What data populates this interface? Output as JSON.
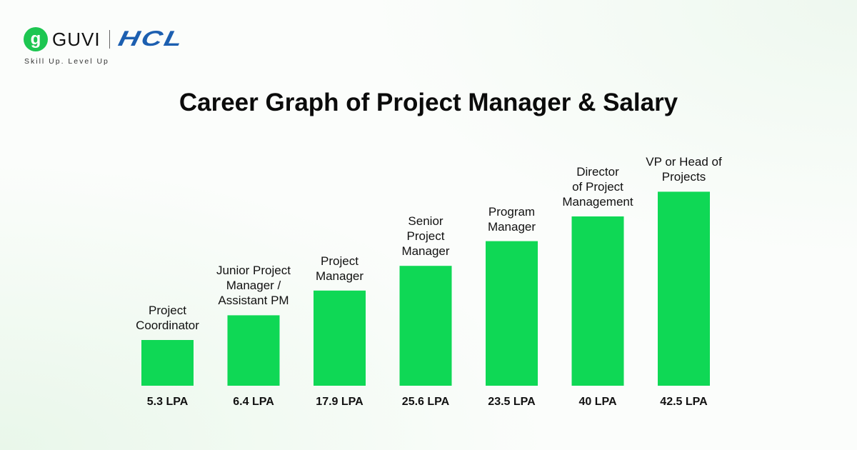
{
  "brand": {
    "guvi": "GUVI",
    "hcl": "HCL",
    "tagline": "Skill Up. Level Up"
  },
  "chart_data": {
    "type": "bar",
    "title": "Career Graph of Project Manager & Salary",
    "categories": [
      "Project Coordinator",
      "Junior Project Manager / Assistant PM",
      "Project Manager",
      "Senior Project Manager",
      "Program Manager",
      "Director of Project Management",
      "VP or Head of Projects"
    ],
    "category_lines": [
      [
        "Project",
        "Coordinator"
      ],
      [
        "Junior Project",
        "Manager /",
        "Assistant PM"
      ],
      [
        "Project",
        "Manager"
      ],
      [
        "Senior",
        "Project",
        "Manager"
      ],
      [
        "Program",
        "Manager"
      ],
      [
        "Director",
        "of Project",
        "Management"
      ],
      [
        "VP or Head of",
        "Projects"
      ]
    ],
    "values": [
      5.3,
      6.4,
      17.9,
      25.6,
      23.5,
      40,
      42.5
    ],
    "value_labels": [
      "5.3 LPA",
      "6.4 LPA",
      "17.9 LPA",
      "25.6 LPA",
      "23.5 LPA",
      "40 LPA",
      "42.5 LPA"
    ],
    "unit": "LPA",
    "bar_color": "#0fd855",
    "grid": false,
    "legend": "none"
  }
}
